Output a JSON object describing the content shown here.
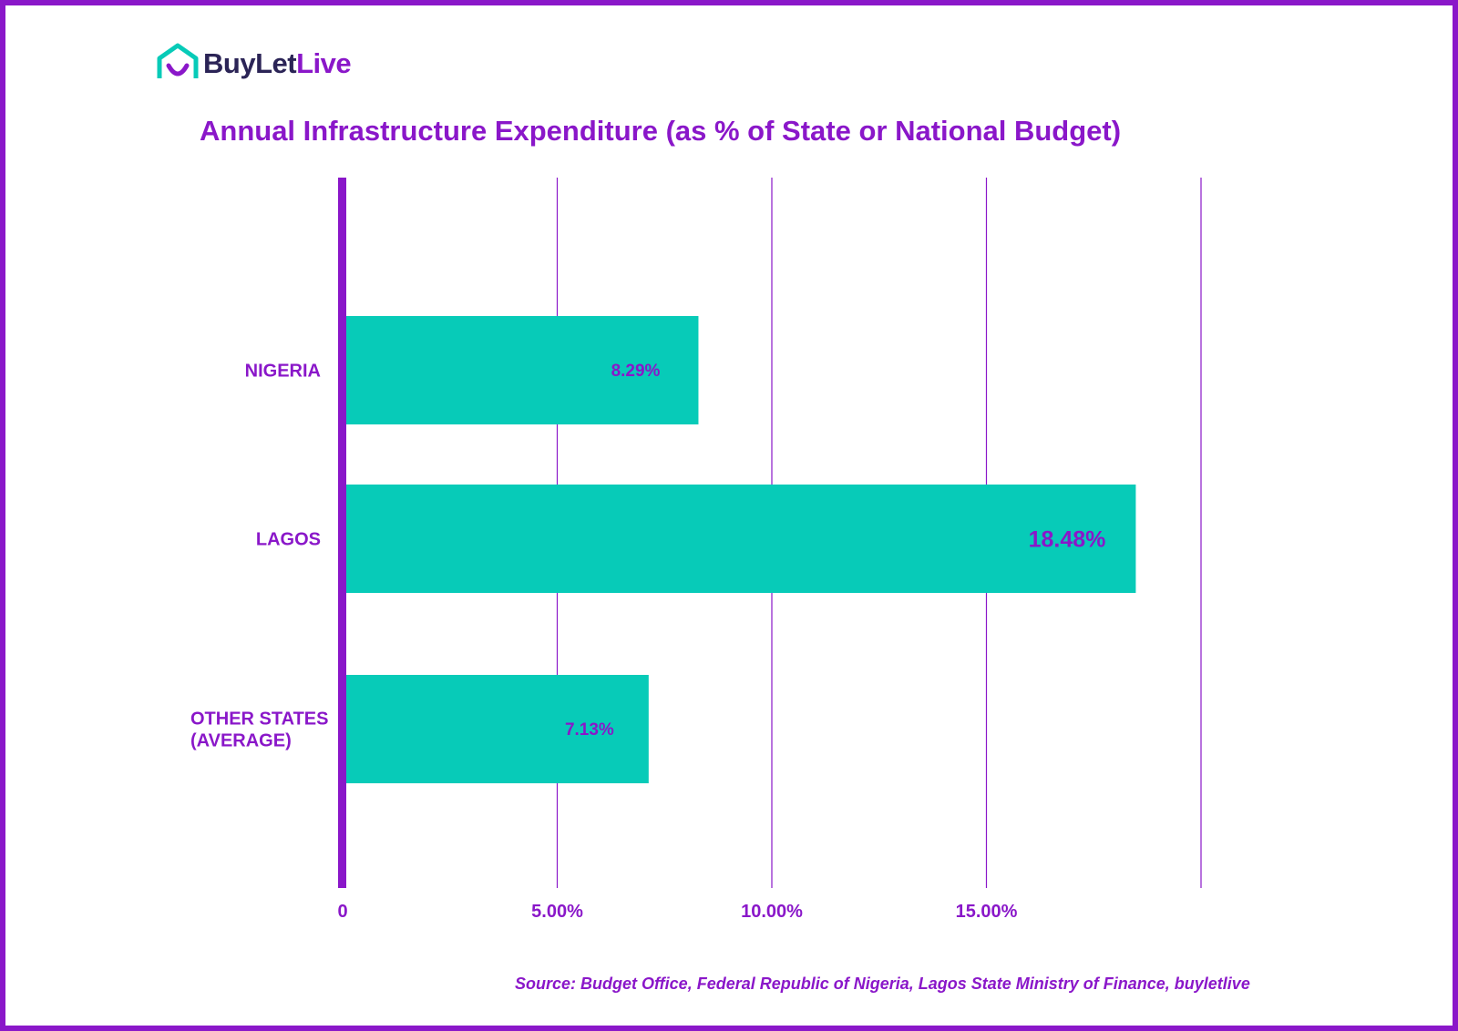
{
  "brand": {
    "name_part1": "BuyLet",
    "name_part2": "Live",
    "icon": "house-smile-icon",
    "colors": {
      "teal": "#07cbb8",
      "purple": "#8a17c9",
      "navy": "#2b2456"
    }
  },
  "chart_data": {
    "type": "bar",
    "orientation": "horizontal",
    "title": "Annual Infrastructure Expenditure (as % of State or National Budget)",
    "categories": [
      "NIGERIA",
      "LAGOS",
      "OTHER STATES (AVERAGE)"
    ],
    "category_lines": [
      [
        "NIGERIA"
      ],
      [
        "LAGOS"
      ],
      [
        "OTHER STATES",
        "(AVERAGE)"
      ]
    ],
    "values": [
      8.29,
      18.48,
      7.13
    ],
    "value_labels": [
      "8.29%",
      "18.48%",
      "7.13%"
    ],
    "xlim": [
      0,
      20
    ],
    "x_ticks": [
      0,
      5,
      10,
      15
    ],
    "x_tick_labels": [
      "0",
      "5.00%",
      "10.00%",
      "15.00%"
    ],
    "gridlines": [
      5,
      10,
      15,
      20
    ],
    "grid": true,
    "bar_color": "#07cbb8",
    "text_color": "#8a17c9",
    "axis_color": "#8a17c9",
    "xlabel": "",
    "ylabel": ""
  },
  "source": "Source: Budget Office, Federal Republic of Nigeria, Lagos State Ministry of Finance, buyletlive"
}
